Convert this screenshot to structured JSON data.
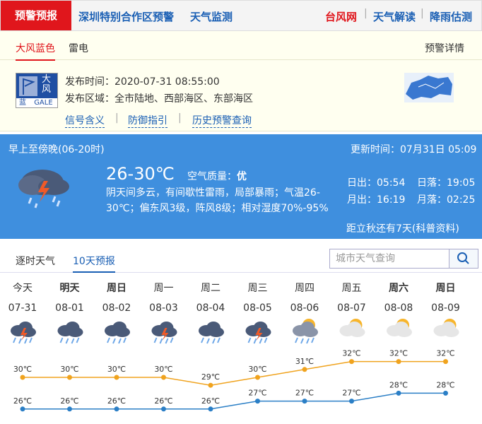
{
  "top_nav": {
    "active_tab": "预警预报",
    "links": [
      "深圳特别合作区预警",
      "天气监测"
    ],
    "right_links": [
      "台风网",
      "天气解读",
      "降雨估测"
    ]
  },
  "warning": {
    "tabs": [
      "大风蓝色",
      "雷电"
    ],
    "detail_link": "预警详情",
    "icon": {
      "title": "大风",
      "level": "蓝",
      "code": "GALE"
    },
    "issue_time": "发布时间：2020-07-31 08:55:00",
    "area": "发布区域：全市陆地、西部海区、东部海区",
    "links": [
      "信号含义",
      "防御指引",
      "历史预警查询"
    ]
  },
  "today": {
    "period": "早上至傍晚(06-20时)",
    "updated": "更新时间：07月31日 05:09",
    "temp_range": "26-30℃",
    "air_quality_label": "空气质量：",
    "air_quality": "优",
    "description": "阴天间多云，有间歇性雷雨，局部暴雨；气温26-30℃；偏东风3级，阵风8级；相对湿度70%-95%",
    "sunrise": "日出：05:54",
    "sunset": "日落：19:05",
    "moonrise": "月出：16:19",
    "moonset": "月落：02:25",
    "solar_term": "距立秋还有7天(科普资料)"
  },
  "forecast": {
    "tabs": [
      "逐时天气",
      "10天预报"
    ],
    "search_placeholder": "城市天气查询",
    "days": [
      "今天",
      "明天",
      "周日",
      "周一",
      "周二",
      "周三",
      "周四",
      "周五",
      "周六",
      "周日"
    ],
    "dates": [
      "07-31",
      "08-01",
      "08-02",
      "08-03",
      "08-04",
      "08-05",
      "08-06",
      "08-07",
      "08-08",
      "08-09"
    ],
    "highs": [
      {
        "value": 30,
        "label": "30℃"
      },
      {
        "value": 30,
        "label": "30℃"
      },
      {
        "value": 30,
        "label": "30℃"
      },
      {
        "value": 30,
        "label": "30℃"
      },
      {
        "value": 29,
        "label": "29℃"
      },
      {
        "value": 30,
        "label": "30℃"
      },
      {
        "value": 31,
        "label": "31℃"
      },
      {
        "value": 32,
        "label": "32℃"
      },
      {
        "value": 32,
        "label": "32℃"
      },
      {
        "value": 32,
        "label": "32℃"
      }
    ],
    "lows": [
      {
        "value": 26,
        "label": "26℃"
      },
      {
        "value": 26,
        "label": "26℃"
      },
      {
        "value": 26,
        "label": "26℃"
      },
      {
        "value": 26,
        "label": "26℃"
      },
      {
        "value": 26,
        "label": "26℃"
      },
      {
        "value": 27,
        "label": "27℃"
      },
      {
        "value": 27,
        "label": "27℃"
      },
      {
        "value": 27,
        "label": "27℃"
      },
      {
        "value": 28,
        "label": "28℃"
      },
      {
        "value": 28,
        "label": "28℃"
      }
    ],
    "high_color": "#f0a31e",
    "low_color": "#2b7fc6"
  }
}
